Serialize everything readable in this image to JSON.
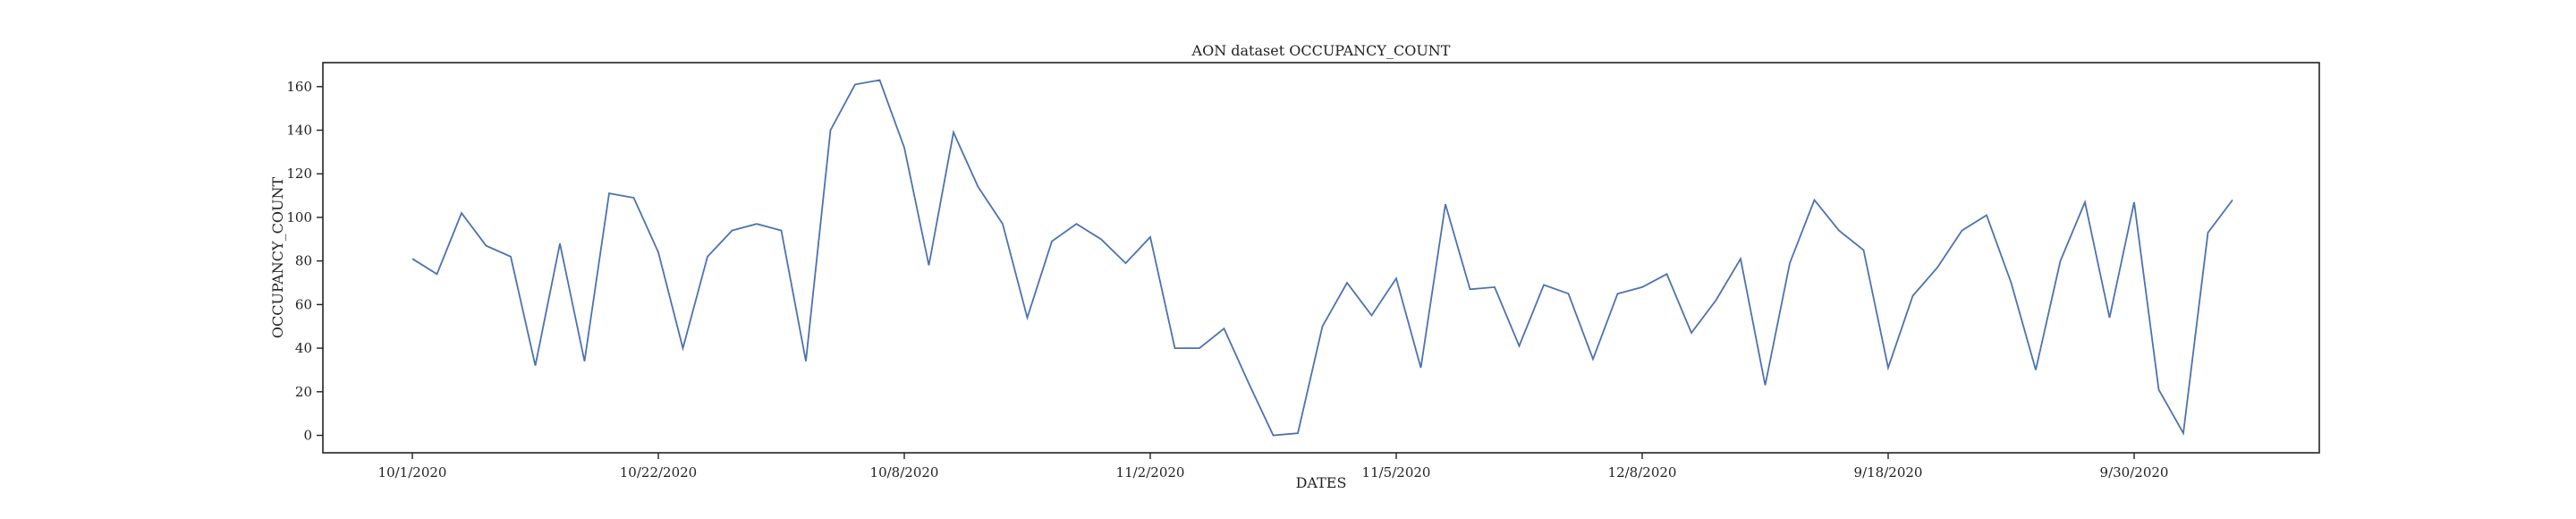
{
  "chart_data": {
    "type": "line",
    "title": "AON dataset OCCUPANCY_COUNT",
    "xlabel": "DATES",
    "ylabel": "OCCUPANCY_COUNT",
    "ylim": [
      -8,
      171
    ],
    "yticks": [
      0,
      20,
      40,
      60,
      80,
      100,
      120,
      140,
      160
    ],
    "grid": false,
    "x_tick_labels": [
      {
        "index": 0,
        "label": "10/1/2020"
      },
      {
        "index": 10,
        "label": "10/22/2020"
      },
      {
        "index": 20,
        "label": "10/8/2020"
      },
      {
        "index": 30,
        "label": "11/2/2020"
      },
      {
        "index": 40,
        "label": "11/5/2020"
      },
      {
        "index": 50,
        "label": "12/8/2020"
      },
      {
        "index": 60,
        "label": "9/18/2020"
      },
      {
        "index": 70,
        "label": "9/30/2020"
      }
    ],
    "series": [
      {
        "color": "#4c72b0",
        "values": [
          81,
          74,
          102,
          87,
          82,
          32,
          88,
          34,
          111,
          109,
          84,
          40,
          82,
          94,
          97,
          94,
          34,
          140,
          161,
          163,
          132,
          78,
          139,
          114,
          97,
          54,
          89,
          97,
          90,
          79,
          91,
          40,
          40,
          49,
          24,
          0,
          1,
          50,
          70,
          55,
          72,
          31,
          106,
          67,
          68,
          41,
          69,
          65,
          35,
          65,
          68,
          74,
          47,
          62,
          81,
          23,
          79,
          108,
          94,
          85,
          31,
          64,
          77,
          94,
          101,
          70,
          30,
          80,
          107,
          54,
          107,
          21,
          1,
          93,
          108
        ]
      }
    ]
  }
}
